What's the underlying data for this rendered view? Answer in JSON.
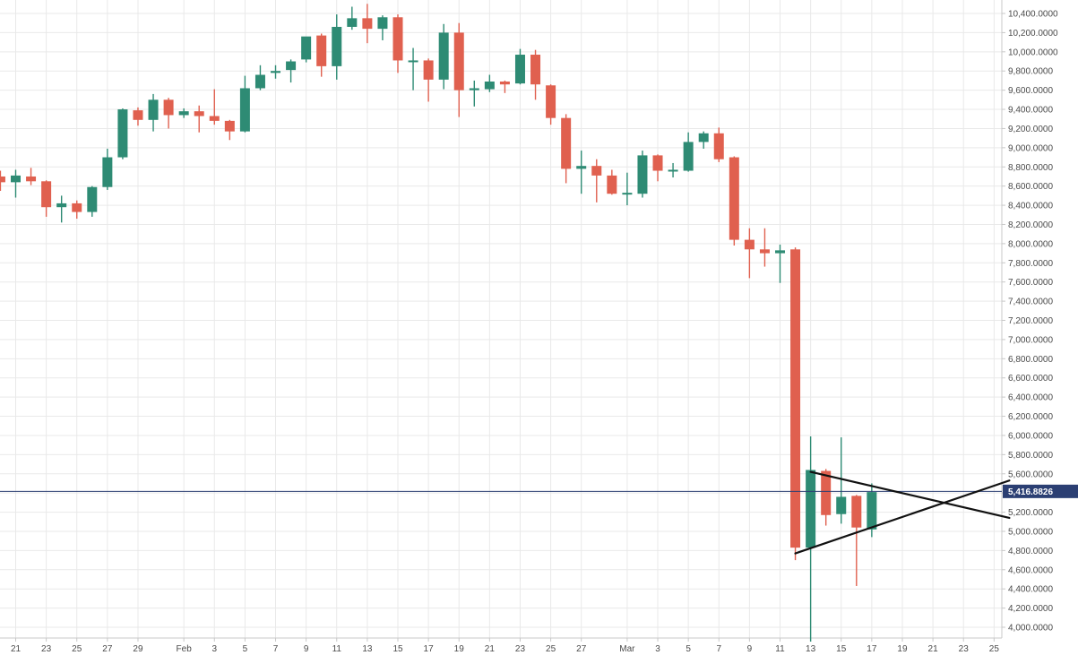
{
  "chart_data": {
    "type": "candlestick",
    "colors": {
      "up": "#2e8b74",
      "down": "#e0604f",
      "grid": "#e9e9e9",
      "axis": "#c8c8c8",
      "price_line": "#2b3f73",
      "trendline": "#111111"
    },
    "ylim": [
      3900000,
      10500000
    ],
    "y_ticks": [
      4000000,
      4200000,
      4400000,
      4600000,
      4800000,
      5000000,
      5200000,
      5400000,
      5600000,
      5800000,
      6000000,
      6200000,
      6400000,
      6600000,
      6800000,
      7000000,
      7200000,
      7400000,
      7600000,
      7800000,
      8000000,
      8200000,
      8400000,
      8600000,
      8800000,
      9000000,
      9200000,
      9400000,
      9600000,
      9800000,
      10000000,
      10200000,
      10400000
    ],
    "y_tick_labels": [
      "4,000.0000",
      "4,200.0000",
      "4,400.0000",
      "4,600.0000",
      "4,800.0000",
      "5,000.0000",
      "5,200.0000",
      "5,400.0000",
      "5,600.0000",
      "5,800.0000",
      "6,000.0000",
      "6,200.0000",
      "6,400.0000",
      "6,600.0000",
      "6,800.0000",
      "7,000.0000",
      "7,200.0000",
      "7,400.0000",
      "7,600.0000",
      "7,800.0000",
      "8,000.0000",
      "8,200.0000",
      "8,400.0000",
      "8,600.0000",
      "8,800.0000",
      "9,000.0000",
      "9,200.0000",
      "9,400.0000",
      "9,600.0000",
      "9,800.0000",
      "10,000.0000",
      "10,200.0000",
      "10,400.0000"
    ],
    "x_labels": [
      {
        "date": "2020-01-21",
        "label": "21"
      },
      {
        "date": "2020-01-23",
        "label": "23"
      },
      {
        "date": "2020-01-25",
        "label": "25"
      },
      {
        "date": "2020-01-27",
        "label": "27"
      },
      {
        "date": "2020-01-29",
        "label": "29"
      },
      {
        "date": "2020-02-01",
        "label": "Feb"
      },
      {
        "date": "2020-02-03",
        "label": "3"
      },
      {
        "date": "2020-02-05",
        "label": "5"
      },
      {
        "date": "2020-02-07",
        "label": "7"
      },
      {
        "date": "2020-02-09",
        "label": "9"
      },
      {
        "date": "2020-02-11",
        "label": "11"
      },
      {
        "date": "2020-02-13",
        "label": "13"
      },
      {
        "date": "2020-02-15",
        "label": "15"
      },
      {
        "date": "2020-02-17",
        "label": "17"
      },
      {
        "date": "2020-02-19",
        "label": "19"
      },
      {
        "date": "2020-02-21",
        "label": "21"
      },
      {
        "date": "2020-02-23",
        "label": "23"
      },
      {
        "date": "2020-02-25",
        "label": "25"
      },
      {
        "date": "2020-02-27",
        "label": "27"
      },
      {
        "date": "2020-03-01",
        "label": "Mar"
      },
      {
        "date": "2020-03-03",
        "label": "3"
      },
      {
        "date": "2020-03-05",
        "label": "5"
      },
      {
        "date": "2020-03-07",
        "label": "7"
      },
      {
        "date": "2020-03-09",
        "label": "9"
      },
      {
        "date": "2020-03-11",
        "label": "11"
      },
      {
        "date": "2020-03-13",
        "label": "13"
      },
      {
        "date": "2020-03-15",
        "label": "15"
      },
      {
        "date": "2020-03-17",
        "label": "17"
      },
      {
        "date": "2020-03-19",
        "label": "19"
      },
      {
        "date": "2020-03-21",
        "label": "21"
      },
      {
        "date": "2020-03-23",
        "label": "23"
      },
      {
        "date": "2020-03-25",
        "label": "25"
      }
    ],
    "candles": [
      {
        "date": "2020-01-20",
        "open": 8700000,
        "high": 8760000,
        "low": 8550000,
        "close": 8640000
      },
      {
        "date": "2020-01-21",
        "open": 8640000,
        "high": 8770000,
        "low": 8480000,
        "close": 8710000
      },
      {
        "date": "2020-01-22",
        "open": 8700000,
        "high": 8790000,
        "low": 8610000,
        "close": 8650000
      },
      {
        "date": "2020-01-23",
        "open": 8650000,
        "high": 8660000,
        "low": 8280000,
        "close": 8380000
      },
      {
        "date": "2020-01-24",
        "open": 8380000,
        "high": 8500000,
        "low": 8220000,
        "close": 8420000
      },
      {
        "date": "2020-01-25",
        "open": 8420000,
        "high": 8450000,
        "low": 8260000,
        "close": 8330000
      },
      {
        "date": "2020-01-26",
        "open": 8330000,
        "high": 8600000,
        "low": 8280000,
        "close": 8590000
      },
      {
        "date": "2020-01-27",
        "open": 8590000,
        "high": 8990000,
        "low": 8560000,
        "close": 8900000
      },
      {
        "date": "2020-01-28",
        "open": 8900000,
        "high": 9410000,
        "low": 8880000,
        "close": 9400000
      },
      {
        "date": "2020-01-29",
        "open": 9390000,
        "high": 9420000,
        "low": 9230000,
        "close": 9290000
      },
      {
        "date": "2020-01-30",
        "open": 9290000,
        "high": 9560000,
        "low": 9170000,
        "close": 9500000
      },
      {
        "date": "2020-01-31",
        "open": 9500000,
        "high": 9520000,
        "low": 9200000,
        "close": 9340000
      },
      {
        "date": "2020-02-01",
        "open": 9340000,
        "high": 9410000,
        "low": 9310000,
        "close": 9380000
      },
      {
        "date": "2020-02-02",
        "open": 9380000,
        "high": 9440000,
        "low": 9160000,
        "close": 9330000
      },
      {
        "date": "2020-02-03",
        "open": 9330000,
        "high": 9610000,
        "low": 9240000,
        "close": 9280000
      },
      {
        "date": "2020-02-04",
        "open": 9280000,
        "high": 9290000,
        "low": 9080000,
        "close": 9170000
      },
      {
        "date": "2020-02-05",
        "open": 9170000,
        "high": 9750000,
        "low": 9160000,
        "close": 9620000
      },
      {
        "date": "2020-02-06",
        "open": 9620000,
        "high": 9860000,
        "low": 9600000,
        "close": 9760000
      },
      {
        "date": "2020-02-07",
        "open": 9780000,
        "high": 9860000,
        "low": 9720000,
        "close": 9800000
      },
      {
        "date": "2020-02-08",
        "open": 9810000,
        "high": 9920000,
        "low": 9680000,
        "close": 9900000
      },
      {
        "date": "2020-02-09",
        "open": 9920000,
        "high": 10150000,
        "low": 9890000,
        "close": 10160000
      },
      {
        "date": "2020-02-10",
        "open": 10170000,
        "high": 10190000,
        "low": 9740000,
        "close": 9850000
      },
      {
        "date": "2020-02-11",
        "open": 9850000,
        "high": 10390000,
        "low": 9710000,
        "close": 10260000
      },
      {
        "date": "2020-02-12",
        "open": 10260000,
        "high": 10470000,
        "low": 10230000,
        "close": 10350000
      },
      {
        "date": "2020-02-13",
        "open": 10350000,
        "high": 10500000,
        "low": 10090000,
        "close": 10240000
      },
      {
        "date": "2020-02-14",
        "open": 10240000,
        "high": 10380000,
        "low": 10120000,
        "close": 10360000
      },
      {
        "date": "2020-02-15",
        "open": 10360000,
        "high": 10390000,
        "low": 9780000,
        "close": 9910000
      },
      {
        "date": "2020-02-16",
        "open": 9910000,
        "high": 10040000,
        "low": 9600000,
        "close": 9910000
      },
      {
        "date": "2020-02-17",
        "open": 9910000,
        "high": 9930000,
        "low": 9480000,
        "close": 9710000
      },
      {
        "date": "2020-02-18",
        "open": 9710000,
        "high": 10290000,
        "low": 9610000,
        "close": 10200000
      },
      {
        "date": "2020-02-19",
        "open": 10200000,
        "high": 10300000,
        "low": 9320000,
        "close": 9600000
      },
      {
        "date": "2020-02-20",
        "open": 9600000,
        "high": 9700000,
        "low": 9430000,
        "close": 9620000
      },
      {
        "date": "2020-02-21",
        "open": 9610000,
        "high": 9760000,
        "low": 9580000,
        "close": 9690000
      },
      {
        "date": "2020-02-22",
        "open": 9690000,
        "high": 9700000,
        "low": 9570000,
        "close": 9660000
      },
      {
        "date": "2020-02-23",
        "open": 9670000,
        "high": 10030000,
        "low": 9660000,
        "close": 9970000
      },
      {
        "date": "2020-02-24",
        "open": 9970000,
        "high": 10020000,
        "low": 9500000,
        "close": 9660000
      },
      {
        "date": "2020-02-25",
        "open": 9650000,
        "high": 9660000,
        "low": 9240000,
        "close": 9310000
      },
      {
        "date": "2020-02-26",
        "open": 9310000,
        "high": 9350000,
        "low": 8630000,
        "close": 8780000
      },
      {
        "date": "2020-02-27",
        "open": 8780000,
        "high": 8970000,
        "low": 8520000,
        "close": 8810000
      },
      {
        "date": "2020-02-28",
        "open": 8810000,
        "high": 8880000,
        "low": 8430000,
        "close": 8710000
      },
      {
        "date": "2020-02-29",
        "open": 8710000,
        "high": 8770000,
        "low": 8510000,
        "close": 8520000
      },
      {
        "date": "2020-03-01",
        "open": 8520000,
        "high": 8740000,
        "low": 8400000,
        "close": 8530000
      },
      {
        "date": "2020-03-02",
        "open": 8520000,
        "high": 8970000,
        "low": 8480000,
        "close": 8920000
      },
      {
        "date": "2020-03-03",
        "open": 8920000,
        "high": 8930000,
        "low": 8650000,
        "close": 8760000
      },
      {
        "date": "2020-03-04",
        "open": 8760000,
        "high": 8840000,
        "low": 8690000,
        "close": 8770000
      },
      {
        "date": "2020-03-05",
        "open": 8760000,
        "high": 9160000,
        "low": 8750000,
        "close": 9060000
      },
      {
        "date": "2020-03-06",
        "open": 9060000,
        "high": 9170000,
        "low": 8990000,
        "close": 9150000
      },
      {
        "date": "2020-03-07",
        "open": 9150000,
        "high": 9210000,
        "low": 8850000,
        "close": 8880000
      },
      {
        "date": "2020-03-08",
        "open": 8900000,
        "high": 8910000,
        "low": 7980000,
        "close": 8040000
      },
      {
        "date": "2020-03-09",
        "open": 8040000,
        "high": 8160000,
        "low": 7640000,
        "close": 7940000
      },
      {
        "date": "2020-03-10",
        "open": 7940000,
        "high": 8160000,
        "low": 7760000,
        "close": 7900000
      },
      {
        "date": "2020-03-11",
        "open": 7900000,
        "high": 7990000,
        "low": 7590000,
        "close": 7930000
      },
      {
        "date": "2020-03-12",
        "open": 7940000,
        "high": 7960000,
        "low": 4700000,
        "close": 4830000
      },
      {
        "date": "2020-03-13",
        "open": 4830000,
        "high": 5990000,
        "low": 3850000,
        "close": 5640000
      },
      {
        "date": "2020-03-14",
        "open": 5630000,
        "high": 5650000,
        "low": 5060000,
        "close": 5170000
      },
      {
        "date": "2020-03-15",
        "open": 5180000,
        "high": 5980000,
        "low": 5080000,
        "close": 5360000
      },
      {
        "date": "2020-03-16",
        "open": 5370000,
        "high": 5380000,
        "low": 4430000,
        "close": 5040000
      },
      {
        "date": "2020-03-17",
        "open": 5020000,
        "high": 5500000,
        "low": 4940000,
        "close": 5410000
      }
    ],
    "trendlines": [
      {
        "from": {
          "date": "2020-03-13",
          "value": 5620000
        },
        "to": {
          "date": "2020-03-26",
          "value": 5140000
        }
      },
      {
        "from": {
          "date": "2020-03-12",
          "value": 4770000
        },
        "to": {
          "date": "2020-03-26",
          "value": 5530000
        }
      }
    ],
    "current_price": {
      "value": 5416882.6,
      "label": "5,416.8826"
    }
  }
}
